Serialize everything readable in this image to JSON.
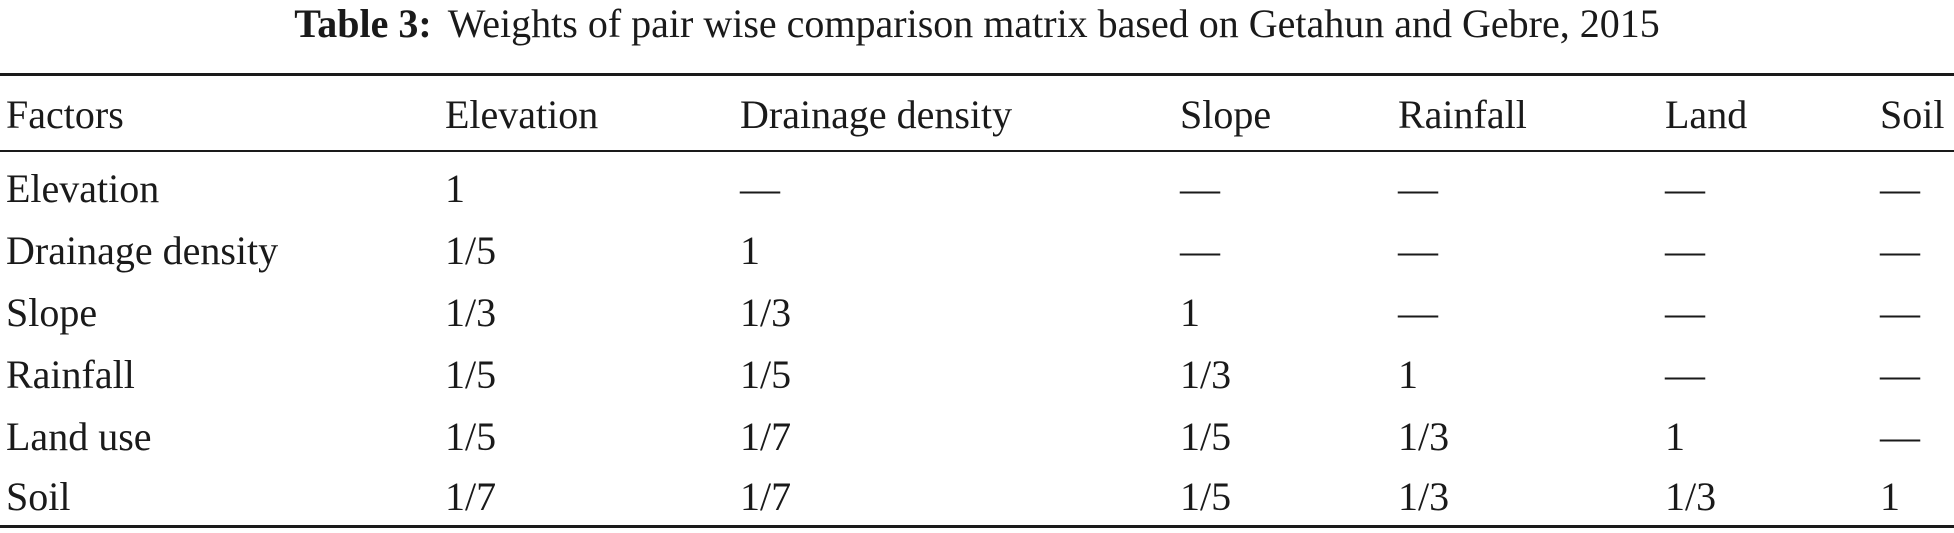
{
  "table": {
    "caption_label": "Table 3:",
    "caption_text": "Weights of pair wise comparison matrix based on Getahun and Gebre, 2015",
    "headers": [
      "Factors",
      "Elevation",
      "Drainage density",
      "Slope",
      "Rainfall",
      "Land",
      "Soil"
    ],
    "rows": [
      [
        "Elevation",
        "1",
        "—",
        "—",
        "—",
        "—",
        "—"
      ],
      [
        "Drainage density",
        "1/5",
        "1",
        "—",
        "—",
        "—",
        "—"
      ],
      [
        "Slope",
        "1/3",
        "1/3",
        "1",
        "—",
        "—",
        "—"
      ],
      [
        "Rainfall",
        "1/5",
        "1/5",
        "1/3",
        "1",
        "—",
        "—"
      ],
      [
        "Land use",
        "1/5",
        "1/7",
        "1/5",
        "1/3",
        "1",
        "—"
      ],
      [
        "Soil",
        "1/7",
        "1/7",
        "1/5",
        "1/3",
        "1/3",
        "1"
      ]
    ]
  }
}
